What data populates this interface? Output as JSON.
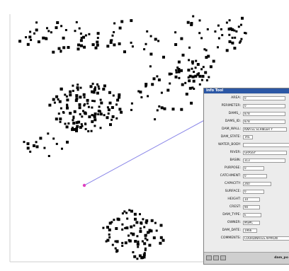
{
  "info_tool": {
    "title": "Info Tool",
    "status_text": "dam_po",
    "fields": [
      {
        "label": "AREA:",
        "value": "0"
      },
      {
        "label": "PERIMETER:",
        "value": "0"
      },
      {
        "label": "DAMS_:",
        "value": "878"
      },
      {
        "label": "DAMS_ID:",
        "value": "878"
      },
      {
        "label": "DAM_WALL:",
        "value": "KWA EL SCHIBLER Y"
      },
      {
        "label": "DAM_STATE:",
        "value": "TAS"
      },
      {
        "label": "WATER_BODY:",
        "value": ""
      },
      {
        "label": "RIVER:",
        "value": "GRASSY"
      },
      {
        "label": "BASIN:",
        "value": "313"
      },
      {
        "label": "PURPOSE:",
        "value": "0"
      },
      {
        "label": "CATCHMENT:",
        "value": "0"
      },
      {
        "label": "CAPACITY:",
        "value": "260"
      },
      {
        "label": "SURFACE:",
        "value": "0"
      },
      {
        "label": "HEIGHT:",
        "value": "10"
      },
      {
        "label": "CREST:",
        "value": "90"
      },
      {
        "label": "DAM_TYPE:",
        "value": "E"
      },
      {
        "label": "OWNER:",
        "value": "MSMC"
      },
      {
        "label": "DAM_DATE:",
        "value": "1966"
      },
      {
        "label": "COMMENTS:",
        "value": "COORDINATES APPROXI"
      }
    ]
  },
  "colors": {
    "point": "#000000",
    "leader_line": "#8a86e8",
    "selected_point": "#e040c0",
    "titlebar": "#2b57a5"
  }
}
